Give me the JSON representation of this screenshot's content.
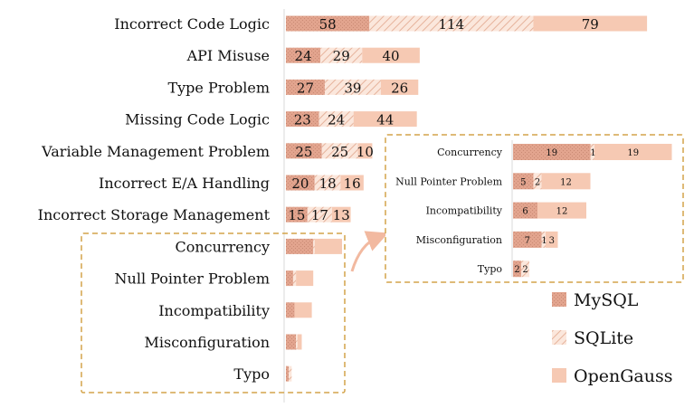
{
  "chart_data": {
    "type": "bar",
    "orientation": "horizontal",
    "stacked": true,
    "categories": [
      "Incorrect Code Logic",
      "API Misuse",
      "Type Problem",
      "Missing Code Logic",
      "Variable Management Problem",
      "Incorrect E/A Handling",
      "Incorrect Storage Management",
      "Concurrency",
      "Null Pointer Problem",
      "Incompatibility",
      "Misconfiguration",
      "Typo"
    ],
    "series": [
      {
        "name": "MySQL",
        "values": [
          58,
          24,
          27,
          23,
          25,
          20,
          15,
          19,
          5,
          6,
          7,
          2
        ],
        "color": "#e0a590",
        "pattern": "dotted"
      },
      {
        "name": "SQLite",
        "values": [
          114,
          29,
          39,
          24,
          25,
          18,
          17,
          1,
          2,
          0,
          1,
          2
        ],
        "color": "#f6d9ca",
        "pattern": "hatched"
      },
      {
        "name": "OpenGauss",
        "values": [
          79,
          40,
          26,
          44,
          10,
          16,
          13,
          19,
          12,
          12,
          3,
          0
        ],
        "color": "#f6c9b3",
        "pattern": "solid"
      }
    ],
    "labeled_categories_main": 7,
    "legend_position": "bottom-right",
    "inset": {
      "categories": [
        "Concurrency",
        "Null Pointer Problem",
        "Incompatibility",
        "Misconfiguration",
        "Typo"
      ],
      "labels": [
        [
          "19",
          "1",
          "19"
        ],
        [
          "5",
          "2",
          "12"
        ],
        [
          "6",
          "",
          "12"
        ],
        [
          "7",
          "1",
          "3"
        ],
        [
          "2",
          "2",
          ""
        ]
      ]
    }
  }
}
